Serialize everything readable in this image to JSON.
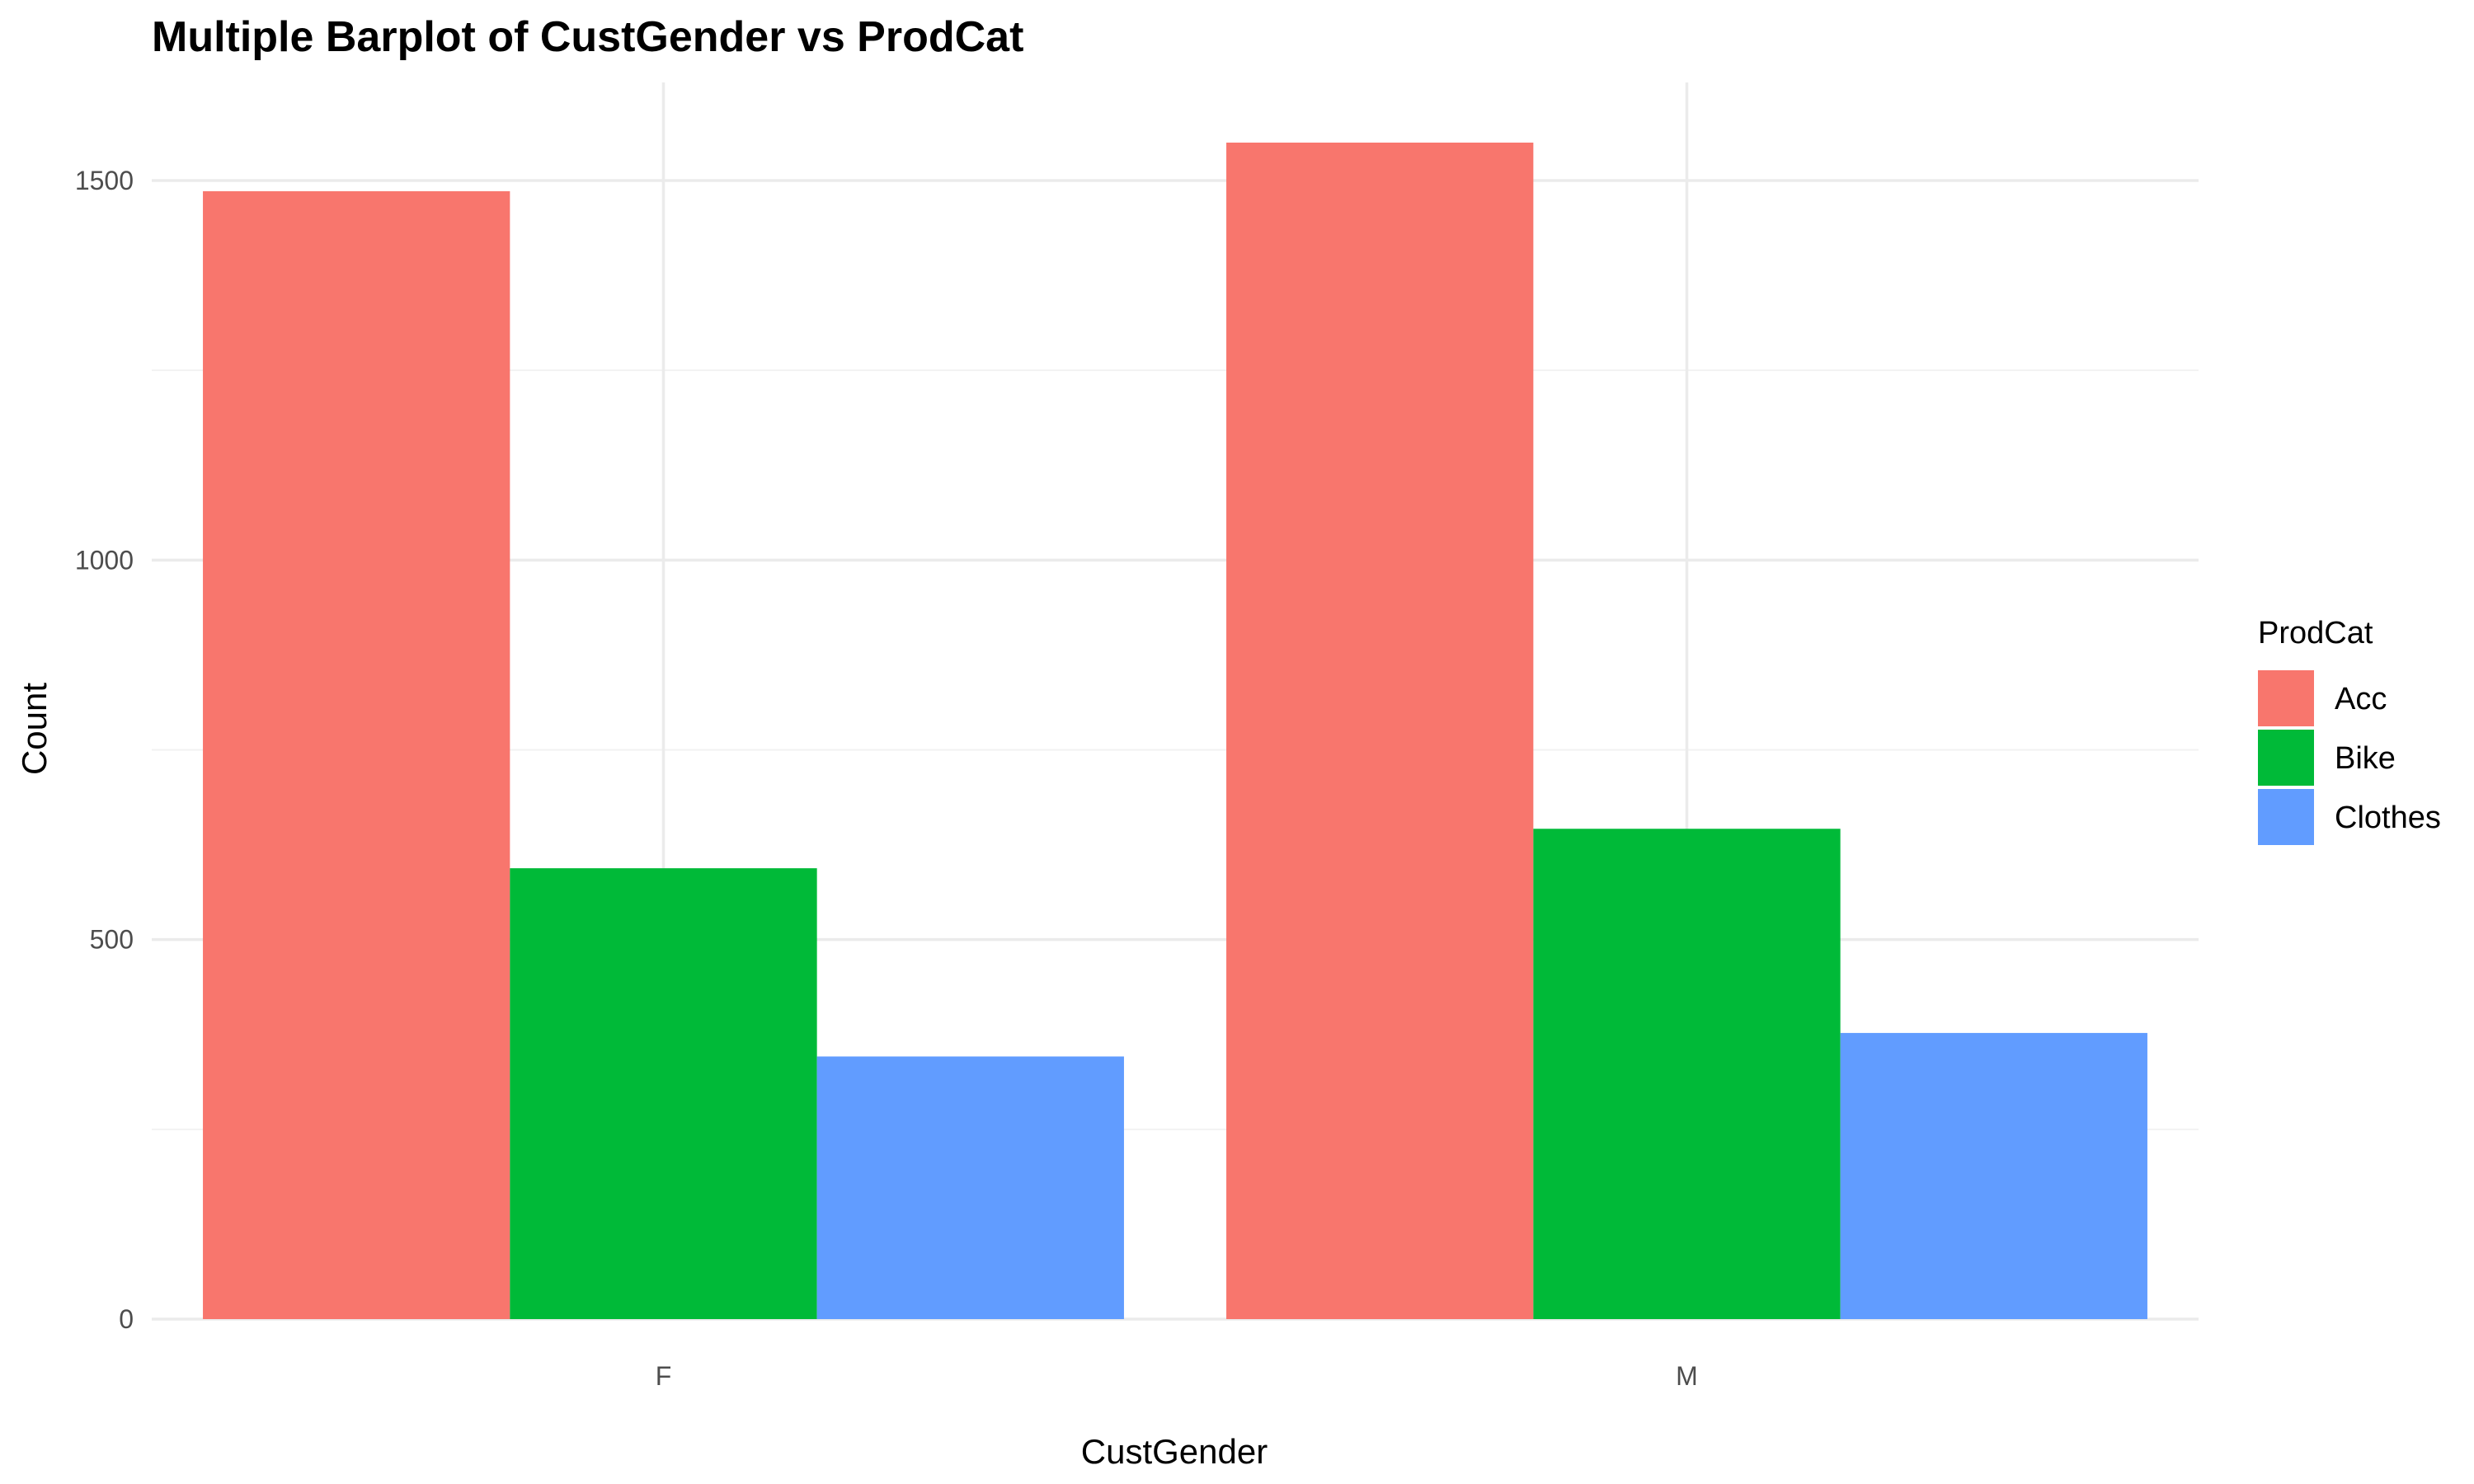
{
  "chart_data": {
    "type": "bar",
    "title": "Multiple Barplot of CustGender vs ProdCat",
    "xlabel": "CustGender",
    "ylabel": "Count",
    "categories": [
      "F",
      "M"
    ],
    "series": [
      {
        "name": "Acc",
        "values": [
          1486,
          1550
        ],
        "color": "#F8766D"
      },
      {
        "name": "Bike",
        "values": [
          594,
          646
        ],
        "color": "#00BA38"
      },
      {
        "name": "Clothes",
        "values": [
          346,
          377
        ],
        "color": "#619CFF"
      }
    ],
    "ylim": [
      0,
      1600
    ],
    "yticks": [
      0,
      500,
      1000,
      1500
    ],
    "ytick_labels": [
      "0",
      "500",
      "1000",
      "1500"
    ],
    "legend": {
      "title": "ProdCat",
      "placement": "right"
    },
    "grid": true
  }
}
